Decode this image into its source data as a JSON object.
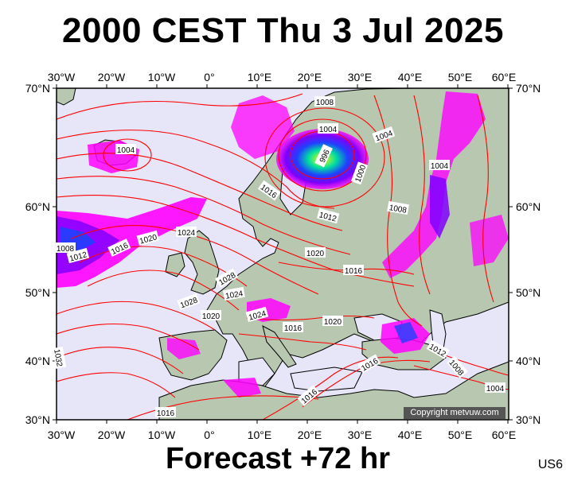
{
  "title": "2000 CEST Thu 3 Jul 2025",
  "footer": "Forecast +72 hr",
  "product_code": "US6",
  "copyright": "Copyright metvuw.com",
  "colors": {
    "sea": "#e6e6f8",
    "land": "#b8c8b0",
    "isobar": "#ff0000",
    "coast": "#000000",
    "precip_light": "#ff00ff",
    "precip_mid": "#8000ff",
    "precip_heavy": "#0040ff"
  },
  "lon_labels_top": [
    "30°W",
    "20°W",
    "10°W",
    "0°",
    "10°E",
    "20°E",
    "30°E",
    "40°E",
    "50°E",
    "60°E"
  ],
  "lon_labels_bottom": [
    "30°W",
    "20°W",
    "10°W",
    "0°",
    "10°E",
    "20°E",
    "30°E",
    "40°E",
    "50°E",
    "60°E"
  ],
  "lat_labels_left": [
    "70°N",
    "60°N",
    "50°N",
    "40°N",
    "30°N"
  ],
  "lat_labels_right": [
    "70°N",
    "60°N",
    "50°N",
    "40°N",
    "30°N"
  ],
  "isobar_labels": [
    "1008",
    "1004",
    "1004",
    "1004",
    "996",
    "1000",
    "1016",
    "1012",
    "1008",
    "1004",
    "1024",
    "1020",
    "1016",
    "1012",
    "1008",
    "1020",
    "1016",
    "1028",
    "1024",
    "1028",
    "1020",
    "1024",
    "1016",
    "1020",
    "1012",
    "1008",
    "1016",
    "1016",
    "1004",
    "1016",
    "1032"
  ]
}
